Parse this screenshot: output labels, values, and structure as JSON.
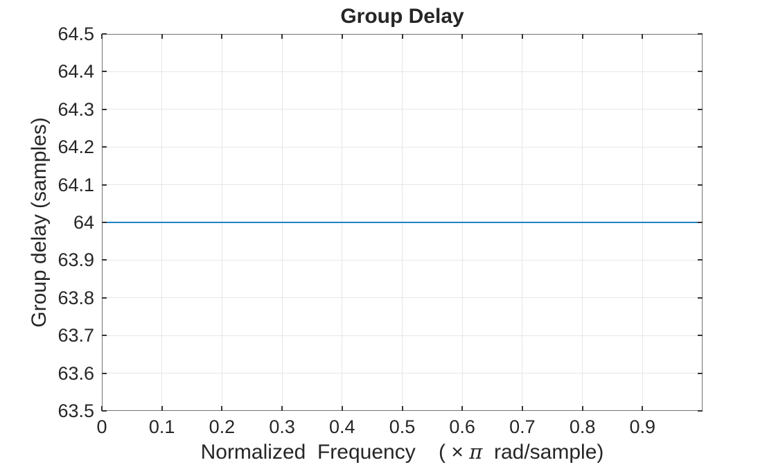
{
  "chart_data": {
    "type": "line",
    "title": "Group Delay",
    "xlabel_pre": "Normalized  Frequency    ( × ",
    "xlabel_pi": "π",
    "xlabel_post": "  rad/sample)",
    "ylabel": "Group delay (samples)",
    "xlim": [
      0,
      1
    ],
    "ylim": [
      63.5,
      64.5
    ],
    "grid": true,
    "xticks": {
      "values": [
        0,
        0.1,
        0.2,
        0.3,
        0.4,
        0.5,
        0.6,
        0.7,
        0.8,
        0.9
      ],
      "labels": [
        "0",
        "0.1",
        "0.2",
        "0.3",
        "0.4",
        "0.5",
        "0.6",
        "0.7",
        "0.8",
        "0.9"
      ]
    },
    "yticks": {
      "values": [
        63.5,
        63.6,
        63.7,
        63.8,
        63.9,
        64,
        64.1,
        64.2,
        64.3,
        64.4,
        64.5
      ],
      "labels": [
        "63.5",
        "63.6",
        "63.7",
        "63.8",
        "63.9",
        "64",
        "64.1",
        "64.2",
        "64.3",
        "64.4",
        "64.5"
      ]
    },
    "series": [
      {
        "name": "group delay",
        "color": "#0072BD",
        "x": [
          0,
          1
        ],
        "y": [
          64,
          64
        ]
      }
    ],
    "colors": {
      "line": "#0072BD",
      "grid": "#e7e7e7",
      "axis_box": "#737373",
      "tick_mark": "#333333",
      "text": "#262626",
      "background": "#ffffff"
    }
  }
}
